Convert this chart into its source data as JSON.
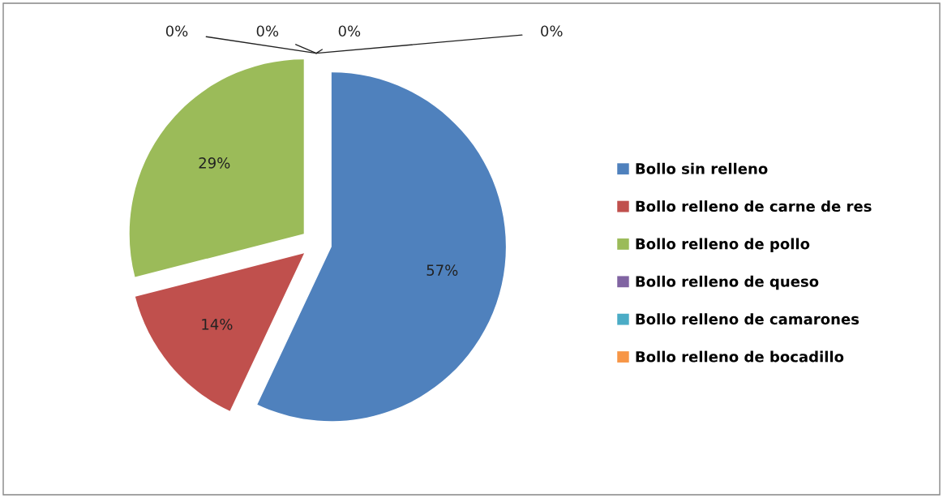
{
  "chart_data": {
    "type": "pie",
    "categories": [
      "Bollo sin relleno",
      "Bollo relleno de carne de res",
      "Bollo relleno de pollo",
      "Bollo relleno de queso",
      "Bollo relleno de camarones",
      "Bollo relleno de bocadillo",
      null
    ],
    "values": [
      57,
      14,
      29,
      0,
      0,
      0,
      0
    ],
    "value_labels": [
      "57%",
      "14%",
      "29%",
      "0%",
      "0%",
      "0%",
      "0%"
    ],
    "colors": [
      "#4f81bd",
      "#c0504d",
      "#9bbb59",
      "#8064a2",
      "#4bacc6",
      "#f79646",
      "#2c4d75"
    ],
    "legend": "right"
  }
}
